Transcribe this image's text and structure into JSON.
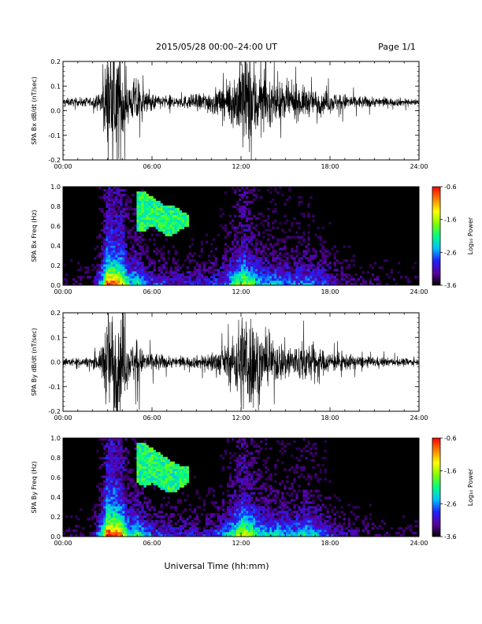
{
  "header": {
    "title": "2015/05/28  00:00–24:00 UT",
    "page": "Page 1/1"
  },
  "footer": {
    "xlabel": "Universal Time (hh:mm)"
  },
  "colorbar": {
    "label": "Log₁₀ Power",
    "ticks": [
      -0.6,
      -1.6,
      -2.6,
      -3.6
    ],
    "range": [
      -3.6,
      -0.6
    ],
    "colors": [
      "#000000",
      "#5a00a0",
      "#2020ff",
      "#00c0ff",
      "#00ff80",
      "#80ff00",
      "#ffff00",
      "#ff8000",
      "#ff0000"
    ]
  },
  "chart_data": [
    {
      "type": "line",
      "ylabel": "SPA Bx dB/dt (nT/sec)",
      "xlim": [
        0,
        24
      ],
      "ylim": [
        -0.2,
        0.2
      ],
      "xticks": [
        "00:00",
        "06:00",
        "12:00",
        "18:00",
        "24:00"
      ],
      "yticks": [
        -0.2,
        -0.1,
        0.0,
        0.1,
        0.2
      ],
      "series": [
        {
          "x": [
            0,
            1,
            2,
            2.5,
            2.8,
            3.0,
            3.3,
            3.6,
            4.0,
            4.3,
            4.6,
            5.0,
            5.3,
            6,
            7,
            8,
            9,
            10,
            11,
            11.5,
            12.0,
            12.3,
            12.7,
            13.0,
            13.5,
            14,
            15,
            16,
            16.5,
            17,
            18,
            19,
            20,
            21,
            22,
            23,
            24
          ],
          "amplitude": [
            0.02,
            0.02,
            0.025,
            0.04,
            0.15,
            0.25,
            0.25,
            0.25,
            0.25,
            0.12,
            0.08,
            0.15,
            0.06,
            0.04,
            0.03,
            0.03,
            0.04,
            0.06,
            0.08,
            0.12,
            0.25,
            0.25,
            0.25,
            0.2,
            0.12,
            0.1,
            0.09,
            0.08,
            0.07,
            0.06,
            0.05,
            0.04,
            0.03,
            0.025,
            0.02,
            0.02,
            0.015
          ],
          "offset": 0.035
        }
      ]
    },
    {
      "type": "heatmap",
      "ylabel": "SPA Bx Freq (Hz)",
      "xlim": [
        0,
        24
      ],
      "ylim": [
        0.0,
        1.0
      ],
      "xticks": [
        "00:00",
        "06:00",
        "12:00",
        "18:00",
        "24:00"
      ],
      "yticks": [
        0.0,
        0.2,
        0.4,
        0.6,
        0.8,
        1.0
      ],
      "activity": {
        "x": [
          0,
          2,
          2.7,
          3.0,
          3.5,
          4.0,
          4.5,
          5.0,
          6,
          8,
          10,
          11,
          11.8,
          12.2,
          12.8,
          13.5,
          14.5,
          15.5,
          16.5,
          17.5,
          18.5,
          20,
          22,
          24
        ],
        "level": [
          0.12,
          0.15,
          0.6,
          0.95,
          0.9,
          0.85,
          0.5,
          0.55,
          0.35,
          0.28,
          0.3,
          0.4,
          0.65,
          0.75,
          0.6,
          0.45,
          0.45,
          0.4,
          0.45,
          0.35,
          0.25,
          0.18,
          0.12,
          0.1
        ]
      },
      "feature": {
        "label": "",
        "x": [
          5.0,
          5.5,
          6.0,
          6.5,
          7.0,
          7.5,
          8.0,
          8.5
        ],
        "freq_low": [
          0.55,
          0.55,
          0.6,
          0.55,
          0.5,
          0.52,
          0.58,
          0.6
        ],
        "freq_high": [
          0.95,
          0.95,
          0.9,
          0.85,
          0.8,
          0.8,
          0.75,
          0.72
        ]
      }
    },
    {
      "type": "line",
      "ylabel": "SPA By dB/dt (nT/sec)",
      "xlim": [
        0,
        24
      ],
      "ylim": [
        -0.2,
        0.2
      ],
      "xticks": [
        "00:00",
        "06:00",
        "12:00",
        "18:00",
        "24:00"
      ],
      "yticks": [
        -0.2,
        -0.1,
        0.0,
        0.1,
        0.2
      ],
      "series": [
        {
          "x": [
            0,
            1,
            2,
            2.5,
            2.8,
            3.0,
            3.3,
            3.6,
            4.0,
            4.3,
            4.6,
            5.0,
            5.3,
            6,
            7,
            8,
            9,
            10,
            11,
            11.5,
            12.0,
            12.3,
            12.7,
            13.0,
            13.5,
            14,
            15,
            16,
            16.5,
            17,
            18,
            19,
            20,
            21,
            22,
            23,
            24
          ],
          "amplitude": [
            0.02,
            0.02,
            0.025,
            0.05,
            0.15,
            0.25,
            0.25,
            0.25,
            0.25,
            0.12,
            0.08,
            0.14,
            0.06,
            0.05,
            0.03,
            0.025,
            0.03,
            0.05,
            0.08,
            0.12,
            0.25,
            0.25,
            0.25,
            0.2,
            0.12,
            0.1,
            0.1,
            0.09,
            0.1,
            0.07,
            0.05,
            0.04,
            0.03,
            0.025,
            0.02,
            0.02,
            0.015
          ],
          "offset": 0.0
        }
      ]
    },
    {
      "type": "heatmap",
      "ylabel": "SPA By Freq (Hz)",
      "xlim": [
        0,
        24
      ],
      "ylim": [
        0.0,
        1.0
      ],
      "xticks": [
        "00:00",
        "06:00",
        "12:00",
        "18:00",
        "24:00"
      ],
      "yticks": [
        0.0,
        0.2,
        0.4,
        0.6,
        0.8,
        1.0
      ],
      "activity": {
        "x": [
          0,
          2,
          2.7,
          3.0,
          3.5,
          4.0,
          4.5,
          5.0,
          6,
          8,
          10,
          11,
          11.8,
          12.2,
          12.8,
          13.5,
          14.5,
          15.5,
          16.5,
          17.5,
          18.5,
          20,
          22,
          24
        ],
        "level": [
          0.12,
          0.15,
          0.65,
          1.0,
          0.95,
          0.85,
          0.5,
          0.6,
          0.35,
          0.28,
          0.3,
          0.45,
          0.7,
          0.8,
          0.65,
          0.5,
          0.5,
          0.45,
          0.55,
          0.4,
          0.25,
          0.18,
          0.12,
          0.1
        ]
      },
      "feature": {
        "label": "",
        "x": [
          5.0,
          5.5,
          6.0,
          6.5,
          7.0,
          7.5,
          8.0,
          8.5
        ],
        "freq_low": [
          0.55,
          0.5,
          0.55,
          0.5,
          0.45,
          0.45,
          0.5,
          0.55
        ],
        "freq_high": [
          0.95,
          0.95,
          0.9,
          0.85,
          0.8,
          0.75,
          0.72,
          0.7
        ]
      }
    }
  ]
}
